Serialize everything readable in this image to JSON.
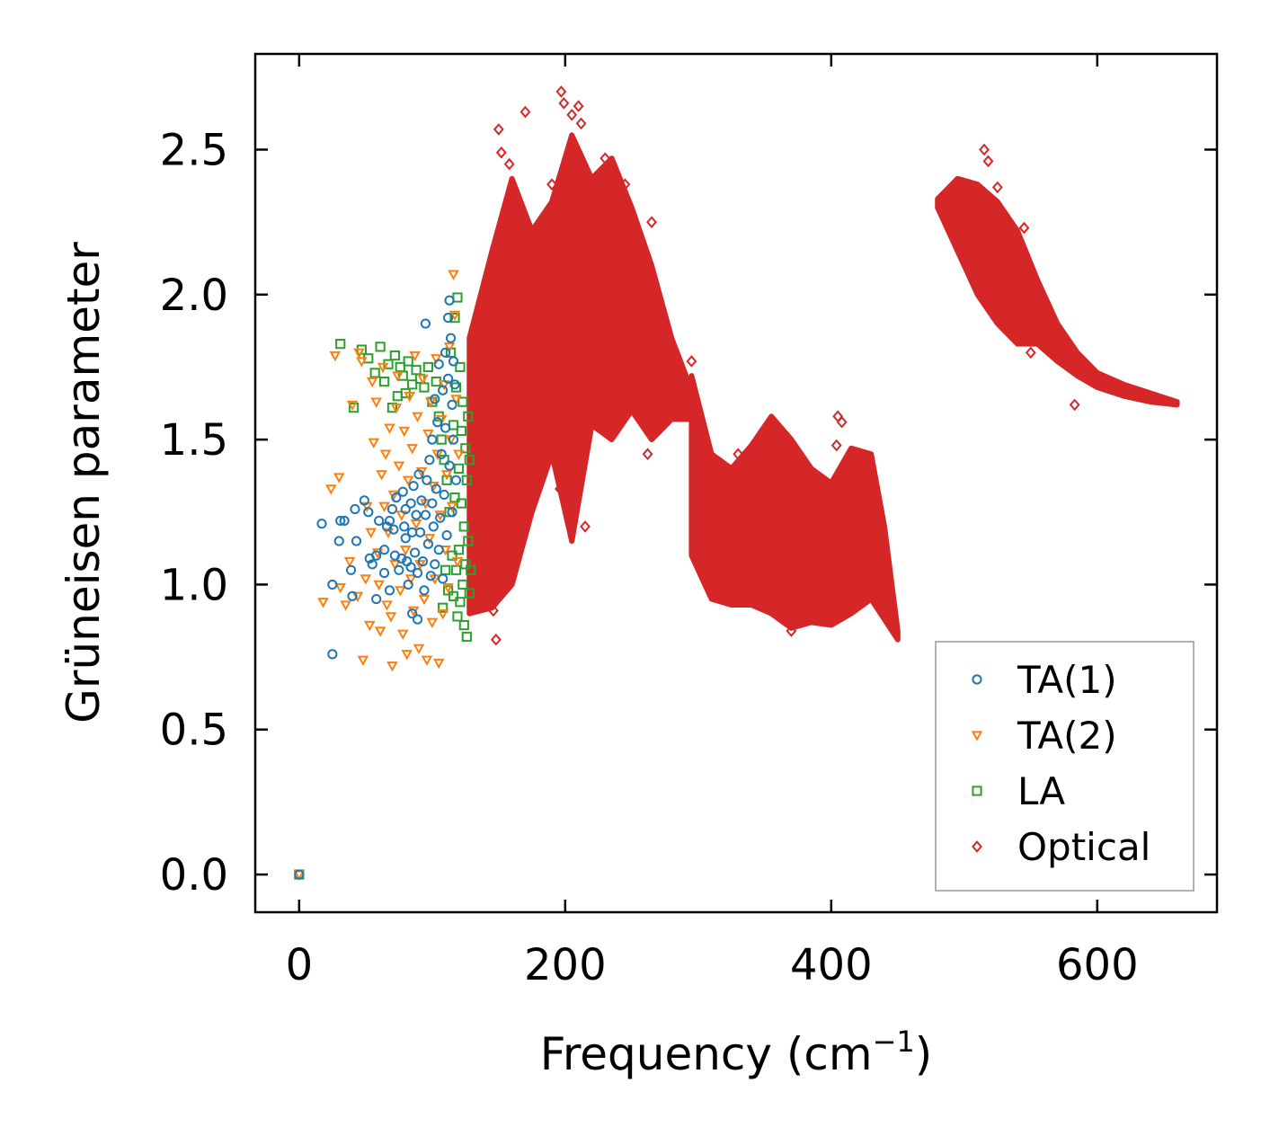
{
  "chart_data": {
    "type": "scatter",
    "title": "",
    "xlabel": "Frequency (cm",
    "xlabel_sup": "−1",
    "xlabel_end": ")",
    "ylabel": "Grüneisen parameter",
    "xlim": [
      -33,
      690
    ],
    "ylim": [
      -0.13,
      2.83
    ],
    "xticks": [
      0,
      200,
      400,
      600
    ],
    "xtick_labels": [
      "0",
      "200",
      "400",
      "600"
    ],
    "yticks": [
      0.0,
      0.5,
      1.0,
      1.5,
      2.0,
      2.5
    ],
    "ytick_labels": [
      "0.0",
      "0.5",
      "1.0",
      "1.5",
      "2.0",
      "2.5"
    ],
    "legend_position": "lower-right",
    "series": [
      {
        "name": "TA(1)",
        "color": "#1f77b4",
        "marker": "circle",
        "points": [
          [
            0,
            0
          ],
          [
            17,
            1.21
          ],
          [
            25,
            1.0
          ],
          [
            25,
            0.76
          ],
          [
            30,
            1.15
          ],
          [
            31,
            1.22
          ],
          [
            34,
            1.22
          ],
          [
            39,
            1.05
          ],
          [
            40,
            0.96
          ],
          [
            42,
            1.26
          ],
          [
            43,
            1.15
          ],
          [
            49,
            1.29
          ],
          [
            52,
            1.25
          ],
          [
            53,
            1.09
          ],
          [
            55,
            1.07
          ],
          [
            58,
            1.1
          ],
          [
            58,
            0.95
          ],
          [
            60,
            1.22
          ],
          [
            64,
            1.12
          ],
          [
            64,
            1.04
          ],
          [
            66,
            1.2
          ],
          [
            68,
            1.22
          ],
          [
            68,
            0.98
          ],
          [
            70,
            1.26
          ],
          [
            71,
            1.19
          ],
          [
            72,
            1.1
          ],
          [
            73,
            1.3
          ],
          [
            75,
            1.05
          ],
          [
            77,
            1.09
          ],
          [
            78,
            1.32
          ],
          [
            79,
            1.2
          ],
          [
            80,
            1.16
          ],
          [
            80,
            1.26
          ],
          [
            81,
            1.08
          ],
          [
            82,
            1.0
          ],
          [
            84,
            1.28
          ],
          [
            84,
            1.06
          ],
          [
            85,
            1.18
          ],
          [
            85,
            0.9
          ],
          [
            86,
            1.34
          ],
          [
            87,
            1.11
          ],
          [
            88,
            1.24
          ],
          [
            89,
            1.04
          ],
          [
            89,
            0.88
          ],
          [
            90,
            1.38
          ],
          [
            91,
            1.18
          ],
          [
            92,
            1.29
          ],
          [
            93,
            1.08
          ],
          [
            94,
            0.98
          ],
          [
            95,
            1.24
          ],
          [
            95,
            1.9
          ],
          [
            96,
            1.36
          ],
          [
            97,
            1.14
          ],
          [
            98,
            1.43
          ],
          [
            99,
            1.03
          ],
          [
            100,
            1.28
          ],
          [
            100,
            1.5
          ],
          [
            101,
            1.2
          ],
          [
            102,
            1.07
          ],
          [
            102,
            1.64
          ],
          [
            103,
            1.33
          ],
          [
            104,
            1.56
          ],
          [
            105,
            1.12
          ],
          [
            105,
            1.76
          ],
          [
            106,
            1.23
          ],
          [
            107,
            1.45
          ],
          [
            108,
            1.67
          ],
          [
            108,
            1.02
          ],
          [
            109,
            1.31
          ],
          [
            110,
            1.54
          ],
          [
            110,
            1.8
          ],
          [
            111,
            1.17
          ],
          [
            112,
            1.71
          ],
          [
            112,
            1.92
          ],
          [
            113,
            1.41
          ],
          [
            113,
            1.98
          ],
          [
            114,
            1.85
          ],
          [
            115,
            1.25
          ],
          [
            115,
            1.62
          ],
          [
            116,
            1.5
          ],
          [
            116,
            1.77
          ],
          [
            117,
            1.69
          ],
          [
            118,
            1.36
          ]
        ]
      },
      {
        "name": "TA(2)",
        "color": "#ff7f0e",
        "marker": "triangle-down",
        "points": [
          [
            0,
            0
          ],
          [
            18,
            0.94
          ],
          [
            24,
            1.33
          ],
          [
            27,
            1.79
          ],
          [
            30,
            1.37
          ],
          [
            31,
            0.99
          ],
          [
            35,
            0.93
          ],
          [
            38,
            1.08
          ],
          [
            40,
            1.62
          ],
          [
            44,
            0.96
          ],
          [
            45,
            1.8
          ],
          [
            47,
            1.77
          ],
          [
            48,
            0.74
          ],
          [
            50,
            1.02
          ],
          [
            51,
            1.27
          ],
          [
            53,
            0.86
          ],
          [
            54,
            1.18
          ],
          [
            55,
            1.7
          ],
          [
            56,
            1.49
          ],
          [
            58,
            1.63
          ],
          [
            59,
            1.11
          ],
          [
            60,
            1.0
          ],
          [
            61,
            0.84
          ],
          [
            62,
            1.38
          ],
          [
            63,
            1.75
          ],
          [
            64,
            1.27
          ],
          [
            65,
            1.45
          ],
          [
            66,
            0.93
          ],
          [
            67,
            1.18
          ],
          [
            68,
            1.54
          ],
          [
            69,
            0.89
          ],
          [
            70,
            0.72
          ],
          [
            71,
            1.31
          ],
          [
            72,
            1.07
          ],
          [
            73,
            1.61
          ],
          [
            74,
            1.72
          ],
          [
            75,
            1.41
          ],
          [
            76,
            0.98
          ],
          [
            77,
            1.24
          ],
          [
            78,
            0.83
          ],
          [
            79,
            1.53
          ],
          [
            80,
            1.12
          ],
          [
            81,
            0.76
          ],
          [
            82,
            1.36
          ],
          [
            83,
            1.65
          ],
          [
            84,
            1.02
          ],
          [
            85,
            1.47
          ],
          [
            86,
            0.91
          ],
          [
            87,
            1.79
          ],
          [
            88,
            1.21
          ],
          [
            89,
            1.58
          ],
          [
            90,
            0.78
          ],
          [
            91,
            1.07
          ],
          [
            92,
            1.39
          ],
          [
            93,
            1.71
          ],
          [
            94,
            0.95
          ],
          [
            95,
            1.28
          ],
          [
            96,
            0.74
          ],
          [
            97,
            1.52
          ],
          [
            98,
            1.16
          ],
          [
            99,
            1.63
          ],
          [
            100,
            0.87
          ],
          [
            101,
            1.34
          ],
          [
            102,
            1.02
          ],
          [
            103,
            1.78
          ],
          [
            104,
            1.45
          ],
          [
            105,
            0.73
          ],
          [
            106,
            1.24
          ],
          [
            107,
            1.57
          ],
          [
            108,
            0.9
          ],
          [
            109,
            1.69
          ],
          [
            110,
            1.12
          ],
          [
            111,
            1.38
          ],
          [
            112,
            0.99
          ],
          [
            113,
            1.82
          ],
          [
            114,
            1.5
          ],
          [
            115,
            1.27
          ],
          [
            116,
            2.07
          ],
          [
            117,
            1.93
          ],
          [
            118,
            1.64
          ],
          [
            119,
            1.08
          ],
          [
            120,
            1.45
          ]
        ]
      },
      {
        "name": "LA",
        "color": "#2ca02c",
        "marker": "square",
        "points": [
          [
            0,
            0
          ],
          [
            31,
            1.83
          ],
          [
            41,
            1.61
          ],
          [
            47,
            1.81
          ],
          [
            52,
            1.78
          ],
          [
            57,
            1.73
          ],
          [
            61,
            1.82
          ],
          [
            64,
            1.7
          ],
          [
            67,
            1.76
          ],
          [
            70,
            1.61
          ],
          [
            72,
            1.79
          ],
          [
            74,
            1.65
          ],
          [
            76,
            1.75
          ],
          [
            78,
            1.72
          ],
          [
            80,
            1.66
          ],
          [
            82,
            1.77
          ],
          [
            85,
            1.69
          ],
          [
            88,
            1.74
          ],
          [
            91,
            1.71
          ],
          [
            94,
            1.68
          ],
          [
            97,
            1.75
          ],
          [
            100,
            1.63
          ],
          [
            103,
            1.7
          ],
          [
            105,
            1.58
          ],
          [
            107,
            1.5
          ],
          [
            108,
            0.92
          ],
          [
            109,
            1.43
          ],
          [
            110,
            1.05
          ],
          [
            111,
            1.36
          ],
          [
            112,
            0.98
          ],
          [
            113,
            1.25
          ],
          [
            114,
            1.8
          ],
          [
            115,
            1.1
          ],
          [
            116,
            1.55
          ],
          [
            116,
            0.96
          ],
          [
            117,
            1.92
          ],
          [
            117,
            1.3
          ],
          [
            118,
            1.05
          ],
          [
            118,
            1.68
          ],
          [
            119,
            0.89
          ],
          [
            119,
            1.99
          ],
          [
            120,
            1.4
          ],
          [
            120,
            1.12
          ],
          [
            121,
            1.75
          ],
          [
            121,
            0.94
          ],
          [
            122,
            1.28
          ],
          [
            122,
            1.53
          ],
          [
            123,
            1.0
          ],
          [
            123,
            1.63
          ],
          [
            124,
            1.2
          ],
          [
            124,
            0.86
          ],
          [
            125,
            1.47
          ],
          [
            125,
            1.07
          ],
          [
            126,
            1.36
          ],
          [
            126,
            0.82
          ],
          [
            127,
            1.58
          ],
          [
            127,
            1.15
          ],
          [
            128,
            1.43
          ],
          [
            128,
            0.97
          ],
          [
            129,
            1.05
          ]
        ]
      },
      {
        "name": "Optical",
        "color": "#d62728",
        "marker": "diamond",
        "dense_regions": [
          {
            "x": [
              128,
              145,
              160,
              175,
              190,
              205,
              220,
              235,
              250,
              265,
              280,
              295
            ],
            "y_low": [
              0.9,
              0.92,
              1.0,
              1.25,
              1.45,
              1.15,
              1.55,
              1.5,
              1.6,
              1.5,
              1.57,
              1.57
            ],
            "y_high": [
              1.85,
              2.15,
              2.4,
              2.22,
              2.32,
              2.55,
              2.4,
              2.47,
              2.3,
              2.1,
              1.85,
              1.67
            ]
          },
          {
            "x": [
              295,
              310,
              325,
              340,
              355,
              370,
              385,
              400,
              415,
              430,
              440,
              450
            ],
            "y_low": [
              1.1,
              0.95,
              0.93,
              0.93,
              0.9,
              0.85,
              0.87,
              0.86,
              0.9,
              0.95,
              0.88,
              0.81
            ],
            "y_high": [
              1.72,
              1.45,
              1.4,
              1.48,
              1.58,
              1.5,
              1.4,
              1.35,
              1.47,
              1.45,
              1.2,
              0.84
            ]
          },
          {
            "x": [
              480,
              495,
              510,
              525,
              540,
              555,
              570,
              585,
              600,
              620,
              640,
              660
            ],
            "y_low": [
              2.3,
              2.15,
              2.0,
              1.9,
              1.83,
              1.83,
              1.77,
              1.72,
              1.68,
              1.65,
              1.63,
              1.62
            ],
            "y_high": [
              2.33,
              2.4,
              2.38,
              2.32,
              2.22,
              2.05,
              1.9,
              1.8,
              1.73,
              1.69,
              1.66,
              1.63
            ]
          }
        ],
        "outliers": [
          [
            148,
            0.81
          ],
          [
            146,
            0.91
          ],
          [
            150,
            2.57
          ],
          [
            152,
            2.49
          ],
          [
            158,
            2.45
          ],
          [
            170,
            2.63
          ],
          [
            190,
            2.38
          ],
          [
            197,
            2.7
          ],
          [
            199,
            2.66
          ],
          [
            205,
            2.62
          ],
          [
            210,
            2.65
          ],
          [
            212,
            2.59
          ],
          [
            196,
            1.33
          ],
          [
            215,
            1.2
          ],
          [
            230,
            2.47
          ],
          [
            245,
            2.38
          ],
          [
            265,
            2.25
          ],
          [
            262,
            1.45
          ],
          [
            295,
            1.77
          ],
          [
            326,
            1.38
          ],
          [
            330,
            1.45
          ],
          [
            370,
            0.84
          ],
          [
            405,
            1.58
          ],
          [
            408,
            1.56
          ],
          [
            404,
            1.48
          ],
          [
            515,
            2.5
          ],
          [
            518,
            2.46
          ],
          [
            525,
            2.37
          ],
          [
            545,
            2.23
          ],
          [
            550,
            1.8
          ],
          [
            583,
            1.62
          ],
          [
            130,
            1.1
          ],
          [
            135,
            1.04
          ]
        ]
      }
    ]
  }
}
